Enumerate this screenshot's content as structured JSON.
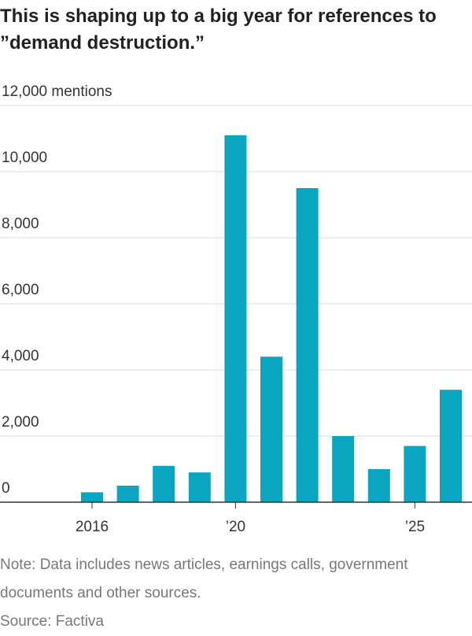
{
  "chart_data": {
    "type": "bar",
    "title": "This is shaping up to a big year for references to ”demand destruction.”",
    "categories": [
      "2016",
      null,
      null,
      null,
      "’20",
      null,
      null,
      null,
      null,
      "’25",
      null
    ],
    "values": [
      300,
      500,
      1100,
      900,
      11100,
      4400,
      9500,
      2000,
      1000,
      1700,
      3400
    ],
    "color": "#0aa5c0",
    "ylim": [
      0,
      12000
    ],
    "yticks": [
      0,
      {
        "value": 2000,
        "label": "2,000"
      },
      {
        "value": 4000,
        "label": "4,000"
      },
      {
        "value": 6000,
        "label": "6,000"
      },
      {
        "value": 8000,
        "label": "8,000"
      },
      {
        "value": 10000,
        "label": "10,000"
      },
      {
        "value": 12000,
        "label": "12,000 mentions"
      }
    ],
    "grid": true,
    "note": "Note: Data includes news articles, earnings calls, government documents and other sources.",
    "source": "Source: Factiva"
  }
}
